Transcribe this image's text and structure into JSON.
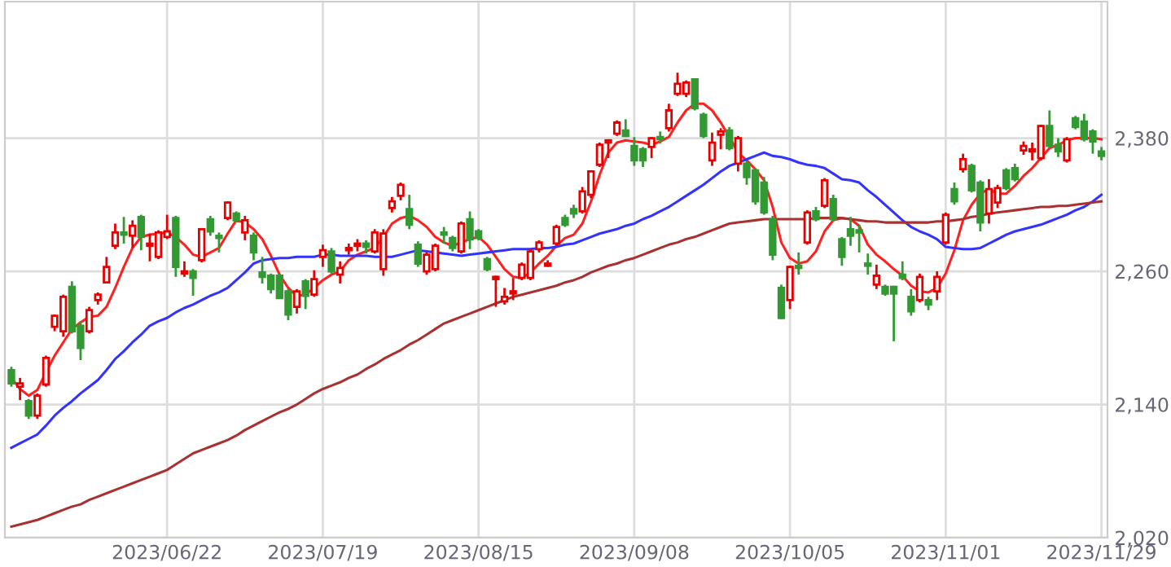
{
  "chart_data": {
    "type": "candlestick",
    "categories": [
      null,
      null,
      null,
      null,
      null,
      null,
      null,
      null,
      null,
      null,
      null,
      null,
      null,
      null,
      null,
      null,
      null,
      null,
      "2023/06/22",
      null,
      null,
      null,
      null,
      null,
      null,
      null,
      null,
      null,
      null,
      null,
      null,
      null,
      null,
      null,
      null,
      null,
      "2023/07/19",
      null,
      null,
      null,
      null,
      null,
      null,
      null,
      null,
      null,
      null,
      null,
      null,
      null,
      null,
      null,
      null,
      null,
      "2023/08/15",
      null,
      null,
      null,
      null,
      null,
      null,
      null,
      null,
      null,
      null,
      null,
      null,
      null,
      null,
      null,
      null,
      null,
      "2023/09/08",
      null,
      null,
      null,
      null,
      null,
      null,
      null,
      null,
      null,
      null,
      null,
      null,
      null,
      null,
      null,
      null,
      null,
      "2023/10/05",
      null,
      null,
      null,
      null,
      null,
      null,
      null,
      null,
      null,
      null,
      null,
      null,
      null,
      null,
      null,
      null,
      null,
      "2023/11/01",
      null,
      null,
      null,
      null,
      null,
      null,
      null,
      null,
      null,
      null,
      null,
      null,
      null,
      null,
      null,
      null,
      null,
      "2023/11/29"
    ],
    "ohlc": [
      [
        2171,
        2174,
        2156,
        2159
      ],
      [
        2156,
        2164,
        2144,
        2159
      ],
      [
        2143,
        2145,
        2127,
        2130
      ],
      [
        2130,
        2150,
        2127,
        2148
      ],
      [
        2158,
        2184,
        2156,
        2182
      ],
      [
        2210,
        2221,
        2206,
        2220
      ],
      [
        2206,
        2239,
        2201,
        2237
      ],
      [
        2246,
        2251,
        2204,
        2206
      ],
      [
        2211,
        2215,
        2180,
        2191
      ],
      [
        2206,
        2228,
        2204,
        2225
      ],
      [
        2234,
        2241,
        2230,
        2239
      ],
      [
        2250,
        2273,
        2249,
        2264
      ],
      [
        2283,
        2303,
        2280,
        2295
      ],
      [
        2295,
        2309,
        2285,
        2293
      ],
      [
        2292,
        2306,
        2281,
        2301
      ],
      [
        2309,
        2311,
        2279,
        2291
      ],
      [
        2283,
        2294,
        2269,
        2285
      ],
      [
        2273,
        2297,
        2271,
        2295
      ],
      [
        2291,
        2311,
        2289,
        2296
      ],
      [
        2308,
        2310,
        2255,
        2264
      ],
      [
        2258,
        2269,
        2255,
        2260
      ],
      [
        2260,
        2262,
        2238,
        2254
      ],
      [
        2270,
        2299,
        2268,
        2298
      ],
      [
        2307,
        2310,
        2292,
        2296
      ],
      [
        2292,
        2295,
        2277,
        2290
      ],
      [
        2308,
        2323,
        2306,
        2322
      ],
      [
        2312,
        2314,
        2304,
        2306
      ],
      [
        2295,
        2310,
        2288,
        2306
      ],
      [
        2292,
        2295,
        2270,
        2277
      ],
      [
        2259,
        2273,
        2249,
        2255
      ],
      [
        2256,
        2258,
        2240,
        2244
      ],
      [
        2256,
        2258,
        2236,
        2236
      ],
      [
        2242,
        2244,
        2216,
        2221
      ],
      [
        2228,
        2244,
        2222,
        2242
      ],
      [
        2251,
        2253,
        2226,
        2238
      ],
      [
        2239,
        2261,
        2237,
        2253
      ],
      [
        2273,
        2284,
        2264,
        2279
      ],
      [
        2278,
        2281,
        2258,
        2260
      ],
      [
        2257,
        2269,
        2249,
        2263
      ],
      [
        2279,
        2285,
        2275,
        2281
      ],
      [
        2283,
        2289,
        2278,
        2285
      ],
      [
        2285,
        2288,
        2276,
        2282
      ],
      [
        2278,
        2298,
        2276,
        2295
      ],
      [
        2262,
        2298,
        2256,
        2294
      ],
      [
        2317,
        2327,
        2313,
        2323
      ],
      [
        2328,
        2340,
        2324,
        2338
      ],
      [
        2316,
        2329,
        2298,
        2302
      ],
      [
        2284,
        2287,
        2264,
        2267
      ],
      [
        2260,
        2277,
        2257,
        2275
      ],
      [
        2262,
        2285,
        2260,
        2283
      ],
      [
        2295,
        2300,
        2285,
        2293
      ],
      [
        2290,
        2292,
        2278,
        2281
      ],
      [
        2278,
        2305,
        2276,
        2303
      ],
      [
        2307,
        2314,
        2280,
        2289
      ],
      [
        2296,
        2298,
        2288,
        2290
      ],
      [
        2271,
        2273,
        2260,
        2262
      ],
      [
        2253,
        2256,
        2228,
        2255
      ],
      [
        2233,
        2245,
        2230,
        2237
      ],
      [
        2240,
        2254,
        2234,
        2242
      ],
      [
        2254,
        2268,
        2252,
        2266
      ],
      [
        2254,
        2280,
        2252,
        2278
      ],
      [
        2280,
        2288,
        2277,
        2286
      ],
      [
        2265,
        2270,
        2264,
        2267
      ],
      [
        2285,
        2302,
        2283,
        2300
      ],
      [
        2308,
        2311,
        2300,
        2302
      ],
      [
        2316,
        2320,
        2308,
        2312
      ],
      [
        2314,
        2336,
        2312,
        2332
      ],
      [
        2329,
        2351,
        2326,
        2350
      ],
      [
        2356,
        2376,
        2354,
        2374
      ],
      [
        2376,
        2379,
        2362,
        2378
      ],
      [
        2384,
        2396,
        2382,
        2394
      ],
      [
        2387,
        2397,
        2381,
        2382
      ],
      [
        2373,
        2381,
        2355,
        2360
      ],
      [
        2370,
        2372,
        2354,
        2360
      ],
      [
        2372,
        2381,
        2362,
        2380
      ],
      [
        2381,
        2386,
        2375,
        2379
      ],
      [
        2389,
        2411,
        2386,
        2405
      ],
      [
        2420,
        2439,
        2418,
        2429
      ],
      [
        2420,
        2432,
        2417,
        2430
      ],
      [
        2433,
        2434,
        2405,
        2407
      ],
      [
        2401,
        2403,
        2380,
        2382
      ],
      [
        2360,
        2385,
        2355,
        2376
      ],
      [
        2383,
        2389,
        2370,
        2386
      ],
      [
        2387,
        2390,
        2369,
        2371
      ],
      [
        2357,
        2382,
        2350,
        2380
      ],
      [
        2357,
        2359,
        2338,
        2345
      ],
      [
        2351,
        2353,
        2320,
        2323
      ],
      [
        2340,
        2345,
        2311,
        2313
      ],
      [
        2307,
        2310,
        2270,
        2275
      ],
      [
        2245,
        2248,
        2217,
        2218
      ],
      [
        2234,
        2265,
        2226,
        2264
      ],
      [
        2265,
        2277,
        2257,
        2263
      ],
      [
        2286,
        2315,
        2284,
        2313
      ],
      [
        2314,
        2318,
        2305,
        2307
      ],
      [
        2319,
        2344,
        2317,
        2342
      ],
      [
        2325,
        2329,
        2305,
        2307
      ],
      [
        2289,
        2291,
        2265,
        2273
      ],
      [
        2298,
        2309,
        2283,
        2292
      ],
      [
        2297,
        2302,
        2277,
        2295
      ],
      [
        2267,
        2276,
        2257,
        2265
      ],
      [
        2248,
        2266,
        2244,
        2256
      ],
      [
        2246,
        2248,
        2238,
        2240
      ],
      [
        2246,
        2247,
        2197,
        2240
      ],
      [
        2257,
        2269,
        2252,
        2254
      ],
      [
        2237,
        2244,
        2220,
        2224
      ],
      [
        2234,
        2258,
        2232,
        2255
      ],
      [
        2234,
        2237,
        2225,
        2230
      ],
      [
        2242,
        2260,
        2234,
        2255
      ],
      [
        2286,
        2313,
        2284,
        2311
      ],
      [
        2334,
        2340,
        2320,
        2323
      ],
      [
        2352,
        2366,
        2349,
        2361
      ],
      [
        2355,
        2357,
        2331,
        2333
      ],
      [
        2340,
        2342,
        2296,
        2304
      ],
      [
        2312,
        2343,
        2303,
        2334
      ],
      [
        2322,
        2338,
        2317,
        2335
      ],
      [
        2351,
        2353,
        2333,
        2335
      ],
      [
        2353,
        2357,
        2341,
        2343
      ],
      [
        2369,
        2377,
        2365,
        2373
      ],
      [
        2368,
        2376,
        2360,
        2370
      ],
      [
        2362,
        2392,
        2360,
        2391
      ],
      [
        2391,
        2405,
        2371,
        2373
      ],
      [
        2374,
        2380,
        2363,
        2368
      ],
      [
        2360,
        2381,
        2358,
        2379
      ],
      [
        2398,
        2400,
        2388,
        2390
      ],
      [
        2395,
        2402,
        2377,
        2379
      ],
      [
        2386,
        2388,
        2366,
        2377
      ],
      [
        2368,
        2372,
        2360,
        2364
      ]
    ],
    "colors": [
      "#339933",
      "#e60000",
      "#339933",
      "#e60000",
      "#e60000",
      "#e60000",
      "#e60000",
      "#339933",
      "#339933",
      "#e60000",
      "#e60000",
      "#e60000",
      "#e60000",
      "#339933",
      "#e60000",
      "#339933",
      "#e60000",
      "#e60000",
      "#e60000",
      "#339933",
      "#e60000",
      "#339933",
      "#e60000",
      "#339933",
      "#339933",
      "#e60000",
      "#339933",
      "#e60000",
      "#339933",
      "#339933",
      "#339933",
      "#339933",
      "#339933",
      "#e60000",
      "#339933",
      "#e60000",
      "#e60000",
      "#339933",
      "#e60000",
      "#e60000",
      "#e60000",
      "#339933",
      "#e60000",
      "#e60000",
      "#e60000",
      "#e60000",
      "#339933",
      "#339933",
      "#e60000",
      "#e60000",
      "#339933",
      "#339933",
      "#e60000",
      "#339933",
      "#339933",
      "#339933",
      "#e60000",
      "#e60000",
      "#e60000",
      "#e60000",
      "#e60000",
      "#e60000",
      "#e60000",
      "#e60000",
      "#339933",
      "#339933",
      "#e60000",
      "#e60000",
      "#e60000",
      "#e60000",
      "#e60000",
      "#339933",
      "#339933",
      "#339933",
      "#e60000",
      "#339933",
      "#e60000",
      "#e60000",
      "#e60000",
      "#339933",
      "#339933",
      "#e60000",
      "#e60000",
      "#339933",
      "#e60000",
      "#339933",
      "#339933",
      "#339933",
      "#339933",
      "#339933",
      "#e60000",
      "#339933",
      "#e60000",
      "#339933",
      "#e60000",
      "#339933",
      "#339933",
      "#339933",
      "#339933",
      "#339933",
      "#e60000",
      "#339933",
      "#339933",
      "#339933",
      "#339933",
      "#e60000",
      "#339933",
      "#e60000",
      "#e60000",
      "#339933",
      "#e60000",
      "#339933",
      "#339933",
      "#e60000",
      "#e60000",
      "#339933",
      "#339933",
      "#e60000",
      "#e60000",
      "#e60000",
      "#339933",
      "#339933",
      "#e60000",
      "#339933",
      "#339933",
      "#339933",
      "#339933"
    ],
    "series": [
      {
        "type": "line",
        "color": "#ff2020",
        "values": [
          2164,
          2154,
          2148,
          2153,
          2169,
          2184,
          2196,
          2208,
          2214,
          2219,
          2220,
          2228,
          2245,
          2264,
          2281,
          2291,
          2293,
          2294,
          2295,
          2291,
          2284,
          2275,
          2273,
          2277,
          2281,
          2294,
          2306,
          2304,
          2298,
          2289,
          2274,
          2257,
          2245,
          2238,
          2239,
          2245,
          2252,
          2257,
          2260,
          2270,
          2275,
          2278,
          2281,
          2291,
          2303,
          2308,
          2310,
          2306,
          2300,
          2291,
          2286,
          2283,
          2286,
          2289,
          2291,
          2284,
          2273,
          2262,
          2255,
          2254,
          2259,
          2267,
          2274,
          2283,
          2290,
          2293,
          2303,
          2323,
          2347,
          2367,
          2376,
          2378,
          2377,
          2376,
          2374,
          2377,
          2381,
          2394,
          2405,
          2411,
          2411,
          2405,
          2394,
          2381,
          2367,
          2360,
          2352,
          2342,
          2318,
          2286,
          2272,
          2267,
          2269,
          2278,
          2296,
          2306,
          2308,
          2307,
          2301,
          2284,
          2275,
          2269,
          2262,
          2256,
          2247,
          2242,
          2241,
          2245,
          2258,
          2279,
          2306,
          2320,
          2330,
          2334,
          2330,
          2330,
          2337,
          2346,
          2353,
          2362,
          2371,
          2374,
          2378,
          2380,
          2380,
          2380,
          2379
        ]
      },
      {
        "type": "line",
        "color": "#3333ff",
        "values": [
          2101,
          2105,
          2109,
          2113,
          2121,
          2130,
          2137,
          2143,
          2150,
          2156,
          2162,
          2171,
          2181,
          2188,
          2196,
          2203,
          2211,
          2215,
          2218,
          2223,
          2227,
          2230,
          2234,
          2238,
          2241,
          2245,
          2252,
          2259,
          2267,
          2270,
          2271,
          2272,
          2272,
          2273,
          2273,
          2273,
          2275,
          2275,
          2274,
          2274,
          2274,
          2274,
          2273,
          2273,
          2273,
          2275,
          2277,
          2279,
          2278,
          2277,
          2276,
          2275,
          2274,
          2275,
          2276,
          2277,
          2278,
          2279,
          2280,
          2280,
          2280,
          2281,
          2281,
          2282,
          2284,
          2285,
          2288,
          2291,
          2294,
          2296,
          2298,
          2301,
          2303,
          2307,
          2310,
          2314,
          2318,
          2323,
          2328,
          2333,
          2338,
          2344,
          2350,
          2355,
          2358,
          2361,
          2364,
          2367,
          2364,
          2363,
          2361,
          2358,
          2356,
          2355,
          2353,
          2348,
          2343,
          2342,
          2340,
          2333,
          2327,
          2320,
          2313,
          2306,
          2300,
          2296,
          2293,
          2289,
          2282,
          2281,
          2280,
          2280,
          2281,
          2285,
          2289,
          2293,
          2296,
          2298,
          2300,
          2302,
          2305,
          2308,
          2311,
          2315,
          2318,
          2323,
          2329
        ]
      },
      {
        "type": "line",
        "color": "#a83232",
        "values": [
          2030,
          2032,
          2034,
          2036,
          2039,
          2042,
          2045,
          2048,
          2050,
          2054,
          2057,
          2060,
          2063,
          2066,
          2069,
          2072,
          2075,
          2078,
          2081,
          2086,
          2091,
          2096,
          2099,
          2102,
          2105,
          2108,
          2112,
          2117,
          2121,
          2125,
          2129,
          2133,
          2136,
          2140,
          2145,
          2150,
          2154,
          2157,
          2160,
          2164,
          2167,
          2172,
          2176,
          2181,
          2185,
          2189,
          2194,
          2198,
          2203,
          2208,
          2213,
          2216,
          2219,
          2222,
          2225,
          2228,
          2231,
          2234,
          2237,
          2239,
          2241,
          2243,
          2245,
          2247,
          2250,
          2252,
          2255,
          2259,
          2262,
          2265,
          2267,
          2270,
          2272,
          2275,
          2278,
          2281,
          2284,
          2286,
          2289,
          2291,
          2294,
          2297,
          2300,
          2303,
          2304,
          2305,
          2306,
          2307,
          2307,
          2307,
          2307,
          2307,
          2307,
          2308,
          2308,
          2308,
          2308,
          2307,
          2306,
          2305,
          2305,
          2304,
          2304,
          2304,
          2304,
          2304,
          2304,
          2305,
          2305,
          2306,
          2307,
          2309,
          2310,
          2312,
          2313,
          2314,
          2315,
          2316,
          2317,
          2318,
          2318,
          2319,
          2319,
          2320,
          2321,
          2322,
          2323
        ]
      }
    ],
    "ylim": [
      2020,
      2503
    ],
    "yticks": [
      {
        "value": 2020,
        "label": "2,020"
      },
      {
        "value": 2140,
        "label": "2,140"
      },
      {
        "value": 2260,
        "label": "2,260"
      },
      {
        "value": 2380,
        "label": "2,380"
      }
    ],
    "grid": true
  }
}
